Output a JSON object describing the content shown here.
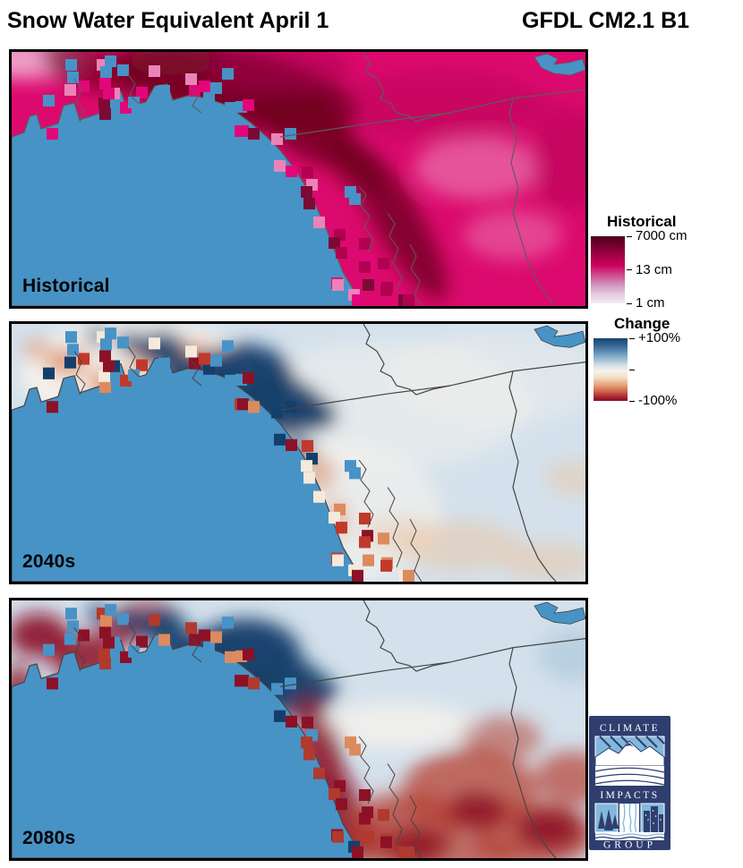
{
  "page_title": {
    "left": "Snow Water Equivalent April 1",
    "right": "GFDL CM2.1 B1"
  },
  "panels": [
    {
      "label": "Historical"
    },
    {
      "label": "2040s"
    },
    {
      "label": "2080s"
    }
  ],
  "legends": {
    "historical": {
      "title": "Historical",
      "tick_labels": [
        "7000 cm",
        "13 cm",
        "1 cm"
      ],
      "gradient_stops": [
        [
          "#4f001e",
          0
        ],
        [
          "#75002f",
          14
        ],
        [
          "#a80146",
          30
        ],
        [
          "#cb0560",
          44
        ],
        [
          "#cf4c8f",
          58
        ],
        [
          "#d193bf",
          72
        ],
        [
          "#e3cade",
          86
        ],
        [
          "#f3eef3",
          100
        ]
      ]
    },
    "change": {
      "title": "Change",
      "tick_labels": [
        "+100%",
        "",
        "-100%"
      ],
      "gradient_stops": [
        [
          "#16436f",
          0
        ],
        [
          "#3d6f9c",
          14
        ],
        [
          "#88b0cc",
          30
        ],
        [
          "#d3e0e6",
          43
        ],
        [
          "#f6f3ed",
          52
        ],
        [
          "#f3ddc4",
          63
        ],
        [
          "#e6a97c",
          74
        ],
        [
          "#cf6248",
          85
        ],
        [
          "#a52433",
          94
        ],
        [
          "#871021",
          100
        ]
      ]
    }
  },
  "logo": {
    "lines": [
      "CLIMATE",
      "IMPACTS",
      "GROUP"
    ],
    "navy": "#2f3e6e",
    "light_blue": "#82b8dc",
    "white": "#ffffff"
  },
  "map_colors": {
    "ocean": "#4793c6",
    "lake": "#4793c6",
    "coastline": "#5c5c5c",
    "border_line": "#4a4a4a",
    "hist_base": "#dc0a6e",
    "hist_dark": "#6f001f",
    "hist_deep": "#a80250",
    "hist_light": "#ee8fc0",
    "hist_pale": "#f2b7d8",
    "chg_base": "#d4e1ec",
    "chg_white": "#f7f3ec",
    "chg_navy": "#153f6b",
    "chg_blue": "#7ea8c6",
    "chg_cream": "#ecc3a0",
    "chg_orange": "#dd8a5f",
    "chg_red": "#b54032",
    "chg_darkred": "#8c1127"
  },
  "cell_palettes": {
    "historical": [
      [
        "#e2067a",
        0.25
      ],
      [
        "#b00250",
        0.2
      ],
      [
        "#7c0a34",
        0.15
      ],
      [
        "#ea84b8",
        0.2
      ],
      [
        "#4793c6",
        0.2
      ]
    ],
    "c2040": [
      [
        "#8c1127",
        0.18
      ],
      [
        "#c0392b",
        0.2
      ],
      [
        "#dd8a5f",
        0.15
      ],
      [
        "#f4e9da",
        0.17
      ],
      [
        "#153f6b",
        0.15
      ],
      [
        "#4793c6",
        0.15
      ]
    ],
    "c2080": [
      [
        "#8c1127",
        0.42
      ],
      [
        "#b03a2e",
        0.2
      ],
      [
        "#153f6b",
        0.12
      ],
      [
        "#4793c6",
        0.12
      ],
      [
        "#dd8a5f",
        0.14
      ]
    ]
  }
}
